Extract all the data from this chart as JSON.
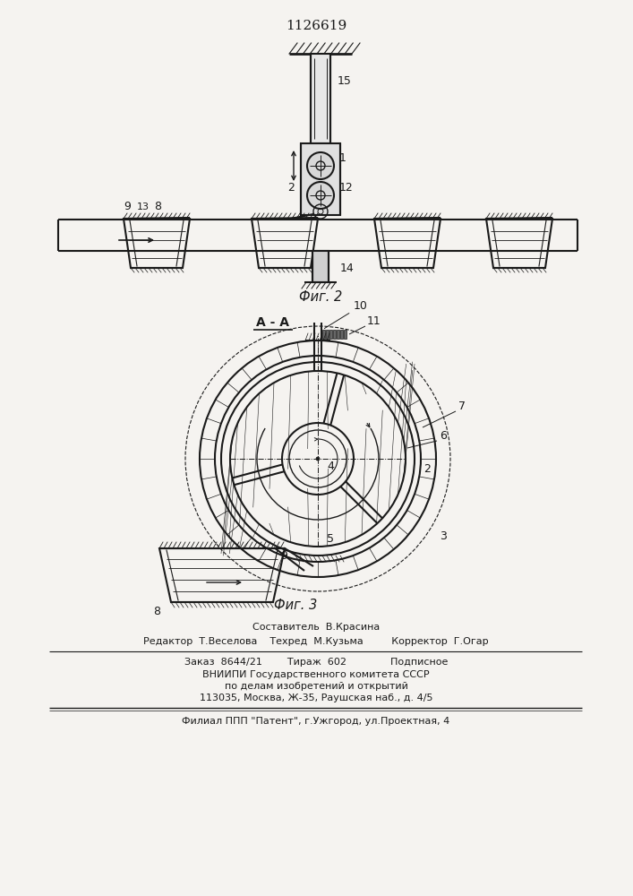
{
  "patent_number": "1126619",
  "bg_color": "#f5f3f0",
  "line_color": "#1a1a1a",
  "fig2_label": "Фиг. 2",
  "fig3_label": "Фиг. 3",
  "section_label": "А - А",
  "footer_lines": [
    "Составитель  В.Красина",
    "Редактор  Т.Веселова    Техред  М.Кузьма         Корректор  Г.Огар",
    "Заказ  8644/21        Тираж  602              Подписное",
    "ВНИИПИ Государственного комитета СССР",
    "по делам изобретений и открытий",
    "113035, Москва, Ж-35, Раушская наб., д. 4/5",
    "Филиал ППП \"Патент\", г.Ужгород, ул.Проектная, 4"
  ]
}
